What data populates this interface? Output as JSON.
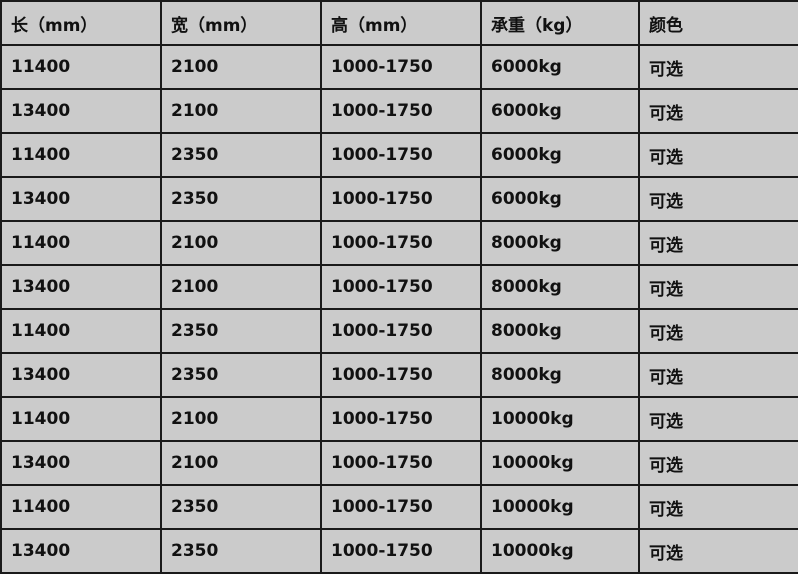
{
  "table": {
    "headers": [
      "长（mm）",
      "宽（mm）",
      "高（mm）",
      "承重（kg）",
      "颜色"
    ],
    "rows": [
      [
        "11400",
        "2100",
        "1000-1750",
        "6000kg",
        "可选"
      ],
      [
        "13400",
        "2100",
        "1000-1750",
        "6000kg",
        "可选"
      ],
      [
        "11400",
        "2350",
        "1000-1750",
        "6000kg",
        "可选"
      ],
      [
        "13400",
        "2350",
        "1000-1750",
        "6000kg",
        "可选"
      ],
      [
        "11400",
        "2100",
        "1000-1750",
        "8000kg",
        "可选"
      ],
      [
        "13400",
        "2100",
        "1000-1750",
        "8000kg",
        "可选"
      ],
      [
        "11400",
        "2350",
        "1000-1750",
        "8000kg",
        "可选"
      ],
      [
        "13400",
        "2350",
        "1000-1750",
        "8000kg",
        "可选"
      ],
      [
        "11400",
        "2100",
        "1000-1750",
        "10000kg",
        "可选"
      ],
      [
        "13400",
        "2100",
        "1000-1750",
        "10000kg",
        "可选"
      ],
      [
        "11400",
        "2350",
        "1000-1750",
        "10000kg",
        "可选"
      ],
      [
        "13400",
        "2350",
        "1000-1750",
        "10000kg",
        "可选"
      ]
    ]
  }
}
